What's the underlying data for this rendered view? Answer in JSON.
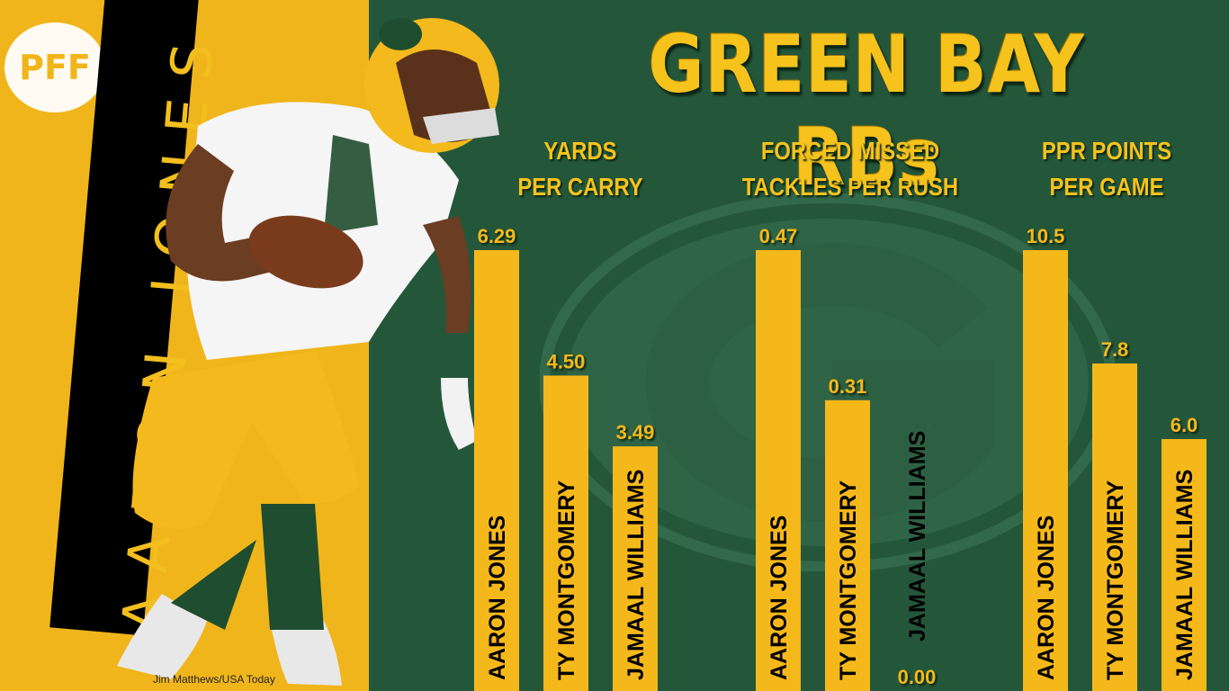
{
  "title": "GREEN BAY RBs",
  "logo_text": "PFF",
  "featured_player": "AARON JONES",
  "photo_credit": "Jim Matthews/USA Today",
  "colors": {
    "gold": "#f0b51a",
    "bar": "#f5b81b",
    "green": "#24573a",
    "text_dark": "#000000"
  },
  "chart_data": [
    {
      "type": "bar",
      "title": "YARDS PER CARRY",
      "title_lines": [
        "YARDS",
        "PER CARRY"
      ],
      "categories": [
        "AARON JONES",
        "TY MONTGOMERY",
        "JAMAAL WILLIAMS"
      ],
      "values": [
        6.29,
        4.5,
        3.49
      ],
      "labels": [
        "6.29",
        "4.50",
        "3.49"
      ]
    },
    {
      "type": "bar",
      "title": "FORCED MISSED TACKLES PER RUSH",
      "title_lines": [
        "FORCED MISSED",
        "TACKLES PER RUSH"
      ],
      "categories": [
        "AARON JONES",
        "TY MONTGOMERY",
        "JAMAAL WILLIAMS"
      ],
      "values": [
        0.47,
        0.31,
        0.0
      ],
      "labels": [
        "0.47",
        "0.31",
        "0.00"
      ]
    },
    {
      "type": "bar",
      "title": "PPR POINTS PER GAME",
      "title_lines": [
        "PPR POINTS",
        "PER GAME"
      ],
      "categories": [
        "AARON JONES",
        "TY MONTGOMERY",
        "JAMAAL WILLIAMS"
      ],
      "values": [
        10.5,
        7.8,
        6.0
      ],
      "labels": [
        "10.5",
        "7.8",
        "6.0"
      ]
    }
  ]
}
